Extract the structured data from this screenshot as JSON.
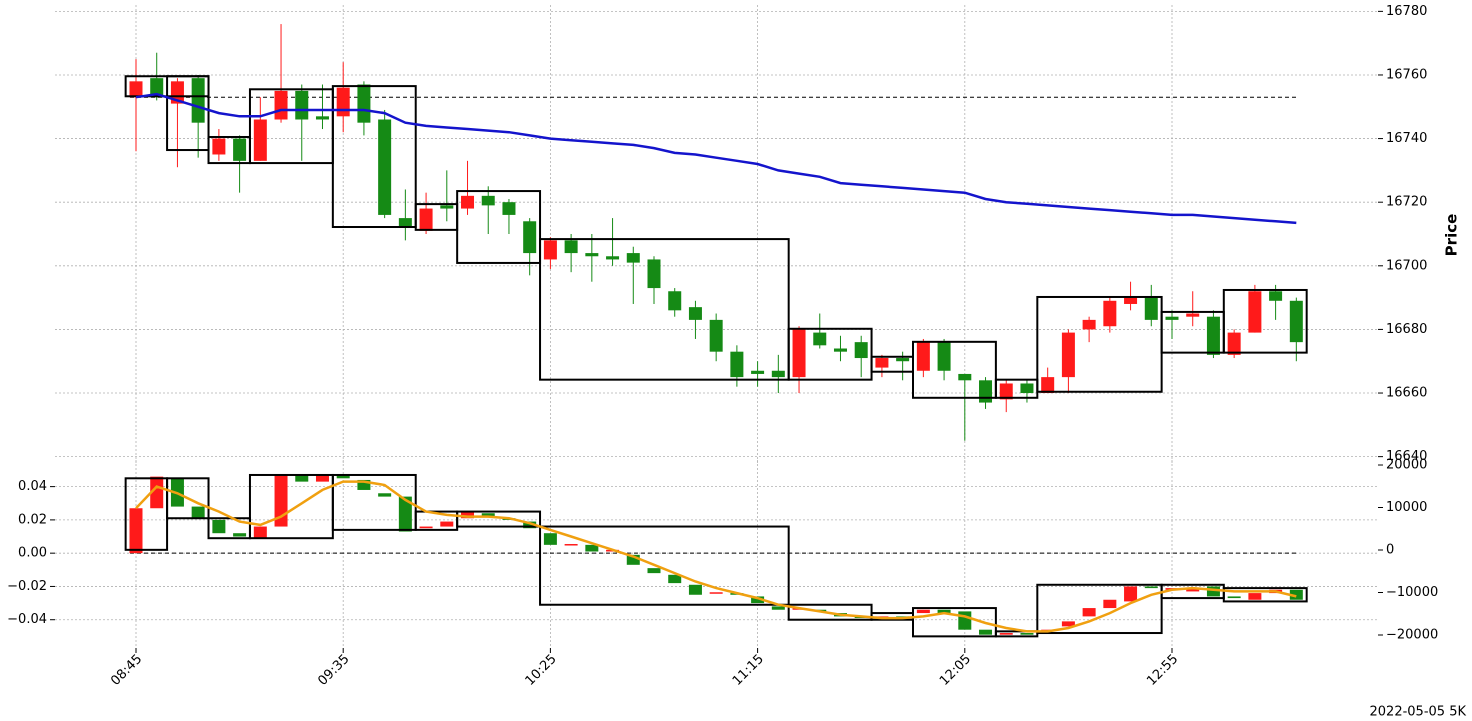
{
  "caption": "2022-05-05 5K",
  "chart_data": [
    {
      "type": "candlestick",
      "ylabel": "Price",
      "yaxis": "right",
      "grid": true,
      "up_color": "#ff1a1a",
      "down_color": "#158a15",
      "ylim": [
        16638,
        16782
      ],
      "yticks": [
        16640,
        16660,
        16680,
        16700,
        16720,
        16740,
        16760,
        16780
      ],
      "hline": 16753,
      "open": [
        16753,
        16759,
        16751,
        16759,
        16735,
        16740,
        16733,
        16746,
        16755,
        16747,
        16747,
        16757,
        16746,
        16715,
        16711,
        16719,
        16718,
        16722,
        16720,
        16714,
        16702,
        16708,
        16704,
        16703,
        16704,
        16702,
        16692,
        16687,
        16683,
        16673,
        16667,
        16667,
        16665,
        16679,
        16674,
        16676,
        16668,
        16671,
        16667,
        16676,
        16666,
        16664,
        16658,
        16663,
        16660,
        16665,
        16680,
        16681,
        16688,
        16690,
        16684,
        16684,
        16684,
        16672,
        16679,
        16692,
        16689
      ],
      "high": [
        16765,
        16767,
        16759,
        16760,
        16743,
        16741,
        16753,
        16776,
        16757,
        16757,
        16764,
        16758,
        16749,
        16724,
        16723,
        16730,
        16733,
        16725,
        16721,
        16715,
        16709,
        16710,
        16710,
        16715,
        16706,
        16703,
        16693,
        16689,
        16685,
        16675,
        16670,
        16672,
        16681,
        16685,
        16678,
        16678,
        16672,
        16673,
        16677,
        16677,
        16666,
        16665,
        16664,
        16664,
        16668,
        16680,
        16684,
        16690,
        16695,
        16694,
        16686,
        16692,
        16686,
        16680,
        16694,
        16694,
        16690
      ],
      "low": [
        16736,
        16752,
        16731,
        16734,
        16733,
        16723,
        16733,
        16745,
        16733,
        16743,
        16742,
        16741,
        16715,
        16708,
        16710,
        16714,
        16716,
        16710,
        16710,
        16697,
        16699,
        16698,
        16695,
        16700,
        16688,
        16688,
        16684,
        16677,
        16670,
        16662,
        16662,
        16660,
        16660,
        16674,
        16670,
        16665,
        16665,
        16664,
        16665,
        16664,
        16645,
        16655,
        16654,
        16657,
        16660,
        16660,
        16676,
        16679,
        16686,
        16681,
        16677,
        16681,
        16671,
        16671,
        16679,
        16683,
        16670
      ],
      "close": [
        16758,
        16753,
        16758,
        16745,
        16740,
        16733,
        16746,
        16755,
        16746,
        16746,
        16756,
        16745,
        16716,
        16712,
        16718,
        16718,
        16722,
        16719,
        16716,
        16704,
        16708,
        16704,
        16703,
        16702,
        16701,
        16693,
        16686,
        16683,
        16673,
        16665,
        16666,
        16665,
        16680,
        16675,
        16673,
        16671,
        16671,
        16670,
        16676,
        16667,
        16664,
        16657,
        16663,
        16660,
        16665,
        16679,
        16683,
        16689,
        16690,
        16683,
        16683,
        16685,
        16672,
        16679,
        16692,
        16689,
        16676
      ],
      "line": {
        "color": "#1414cc",
        "values": [
          16753,
          16754,
          16752,
          16750,
          16748,
          16747,
          16747,
          16749,
          16749,
          16749,
          16749,
          16749,
          16748,
          16745,
          16744,
          16743.5,
          16743,
          16742.5,
          16742,
          16741,
          16740,
          16739.5,
          16739,
          16738.5,
          16738,
          16737,
          16735.5,
          16735,
          16734,
          16733,
          16732,
          16730,
          16729,
          16728,
          16726,
          16725.5,
          16725,
          16724.5,
          16724,
          16723.5,
          16723,
          16721,
          16720,
          16719.5,
          16719,
          16718.5,
          16718,
          16717.5,
          16717,
          16716.5,
          16716,
          16716,
          16715.5,
          16715,
          16714.5,
          16714,
          16713.5
        ]
      },
      "boxes": [
        {
          "start": -0.5,
          "end": 3.5,
          "top": 16759.6,
          "bottom": 16753.3
        },
        {
          "start": 1.5,
          "end": 3.5,
          "top": 16759.6,
          "bottom": 16736.4
        },
        {
          "start": 3.5,
          "end": 5.5,
          "top": 16740.5,
          "bottom": 16732.3
        },
        {
          "start": 5.5,
          "end": 9.5,
          "top": 16755.5,
          "bottom": 16732.3
        },
        {
          "start": 9.5,
          "end": 13.5,
          "top": 16756.5,
          "bottom": 16712.2
        },
        {
          "start": 13.5,
          "end": 15.5,
          "top": 16719.4,
          "bottom": 16711.3
        },
        {
          "start": 15.5,
          "end": 19.5,
          "top": 16723.5,
          "bottom": 16700.9
        },
        {
          "start": 19.5,
          "end": 31.5,
          "top": 16708.4,
          "bottom": 16664.2
        },
        {
          "start": 31.5,
          "end": 35.5,
          "top": 16680.2,
          "bottom": 16664.2
        },
        {
          "start": 35.5,
          "end": 37.5,
          "top": 16671.4,
          "bottom": 16666.7
        },
        {
          "start": 37.5,
          "end": 41.5,
          "top": 16676.1,
          "bottom": 16658.5
        },
        {
          "start": 41.5,
          "end": 43.5,
          "top": 16664.2,
          "bottom": 16658.5
        },
        {
          "start": 43.5,
          "end": 49.5,
          "top": 16690.2,
          "bottom": 16660.4
        },
        {
          "start": 49.5,
          "end": 52.5,
          "top": 16685.5,
          "bottom": 16672.7
        },
        {
          "start": 52.5,
          "end": 56.5,
          "top": 16692.4,
          "bottom": 16672.7
        }
      ]
    },
    {
      "type": "candlestick",
      "yaxis": "left",
      "grid": true,
      "up_color": "#ff1a1a",
      "down_color": "#158a15",
      "categories": [
        "08:45",
        null,
        null,
        null,
        null,
        null,
        null,
        null,
        null,
        null,
        "09:35",
        null,
        null,
        null,
        null,
        null,
        null,
        null,
        null,
        null,
        "10:25",
        null,
        null,
        null,
        null,
        null,
        null,
        null,
        null,
        null,
        "11:15",
        null,
        null,
        null,
        null,
        null,
        null,
        null,
        null,
        null,
        "12:05",
        null,
        null,
        null,
        null,
        null,
        null,
        null,
        null,
        null,
        "12:55",
        null,
        null,
        null,
        null,
        null,
        null
      ],
      "ylim": [
        -0.057,
        0.056
      ],
      "yticks": [
        0.04,
        0.02,
        {
          "value": 0,
          "label": "0.00"
        },
        {
          "value": -0.02,
          "label": "−0.02"
        },
        {
          "value": -0.04,
          "label": "−0.04"
        }
      ],
      "y2lim": [
        -23060,
        21180
      ],
      "y2ticks": [
        20000,
        10000,
        0,
        {
          "value": -10000,
          "label": "−10000"
        },
        {
          "value": -20000,
          "label": "−20000"
        }
      ],
      "hline": 0,
      "open": [
        0,
        0.027,
        0.045,
        0.028,
        0.02,
        0.012,
        0.009,
        0.016,
        0.047,
        0.043,
        0.047,
        0.044,
        0.036,
        0.034,
        0.015,
        0.016,
        0.021,
        0.024,
        0.021,
        0.019,
        0.012,
        0.005,
        0.005,
        0.001,
        -0.001,
        -0.009,
        -0.013,
        -0.019,
        -0.024,
        -0.024,
        -0.026,
        -0.032,
        -0.034,
        -0.034,
        -0.036,
        -0.038,
        -0.039,
        -0.038,
        -0.036,
        -0.034,
        -0.035,
        -0.046,
        -0.049,
        -0.048,
        -0.047,
        -0.044,
        -0.038,
        -0.033,
        -0.029,
        -0.02,
        -0.022,
        -0.023,
        -0.02,
        -0.026,
        -0.028,
        -0.024,
        -0.022
      ],
      "close": [
        0.027,
        0.046,
        0.028,
        0.021,
        0.012,
        0.01,
        0.016,
        0.047,
        0.043,
        0.047,
        0.045,
        0.038,
        0.034,
        0.013,
        0.016,
        0.019,
        0.025,
        0.022,
        0.02,
        0.015,
        0.005,
        0.0055,
        0.001,
        0.002,
        -0.007,
        -0.012,
        -0.018,
        -0.025,
        -0.0235,
        -0.025,
        -0.03,
        -0.034,
        -0.033,
        -0.035,
        -0.038,
        -0.039,
        -0.038,
        -0.039,
        -0.034,
        -0.036,
        -0.046,
        -0.049,
        -0.048,
        -0.049,
        -0.046,
        -0.041,
        -0.033,
        -0.028,
        -0.02,
        -0.021,
        -0.021,
        -0.021,
        -0.026,
        -0.027,
        -0.024,
        -0.022,
        -0.028
      ],
      "line": {
        "color": "#f0a010",
        "values": [
          0.027,
          0.04,
          0.036,
          0.03,
          0.025,
          0.019,
          0.017,
          0.022,
          0.03,
          0.038,
          0.043,
          0.043,
          0.041,
          0.032,
          0.025,
          0.023,
          0.022,
          0.022,
          0.021,
          0.018,
          0.014,
          0.01,
          0.006,
          0.002,
          -0.002,
          -0.007,
          -0.012,
          -0.017,
          -0.021,
          -0.024,
          -0.027,
          -0.031,
          -0.033,
          -0.035,
          -0.037,
          -0.038,
          -0.039,
          -0.039,
          -0.038,
          -0.036,
          -0.038,
          -0.042,
          -0.045,
          -0.047,
          -0.047,
          -0.045,
          -0.041,
          -0.036,
          -0.03,
          -0.025,
          -0.022,
          -0.021,
          -0.022,
          -0.023,
          -0.023,
          -0.023,
          -0.026
        ]
      },
      "boxes": [
        {
          "start": -0.5,
          "end": 1.5,
          "top": 0.045,
          "bottom": 0.002
        },
        {
          "start": 1.5,
          "end": 3.5,
          "top": 0.045,
          "bottom": 0.021
        },
        {
          "start": 3.5,
          "end": 5.5,
          "top": 0.021,
          "bottom": 0.009
        },
        {
          "start": 5.5,
          "end": 9.5,
          "top": 0.047,
          "bottom": 0.009
        },
        {
          "start": 9.5,
          "end": 13.5,
          "top": 0.047,
          "bottom": 0.014
        },
        {
          "start": 13.5,
          "end": 15.5,
          "top": 0.025,
          "bottom": 0.014
        },
        {
          "start": 15.5,
          "end": 19.5,
          "top": 0.025,
          "bottom": 0.016
        },
        {
          "start": 19.5,
          "end": 31.5,
          "top": 0.016,
          "bottom": -0.031
        },
        {
          "start": 31.5,
          "end": 35.5,
          "top": -0.031,
          "bottom": -0.04
        },
        {
          "start": 35.5,
          "end": 37.5,
          "top": -0.036,
          "bottom": -0.04
        },
        {
          "start": 37.5,
          "end": 41.5,
          "top": -0.033,
          "bottom": -0.05
        },
        {
          "start": 41.5,
          "end": 43.5,
          "top": -0.047,
          "bottom": -0.05
        },
        {
          "start": 43.5,
          "end": 49.5,
          "top": -0.019,
          "bottom": -0.048
        },
        {
          "start": 49.5,
          "end": 52.5,
          "top": -0.019,
          "bottom": -0.027
        },
        {
          "start": 52.5,
          "end": 56.5,
          "top": -0.021,
          "bottom": -0.029
        }
      ]
    }
  ]
}
